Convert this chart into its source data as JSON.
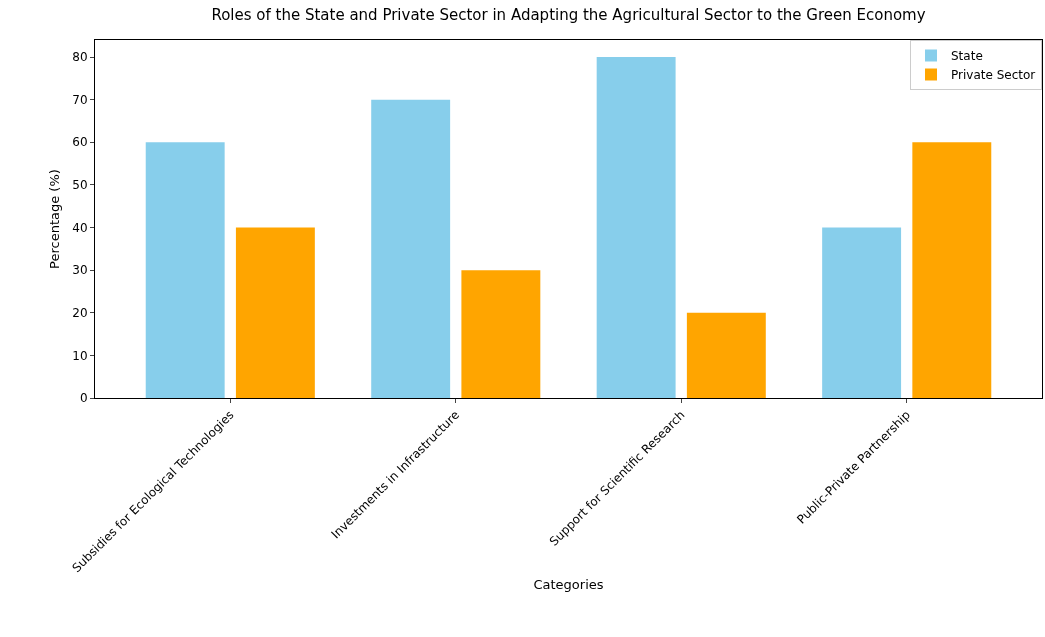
{
  "chart_data": {
    "type": "bar",
    "title": "Roles of the State and Private Sector in Adapting the Agricultural Sector to the Green Economy",
    "xlabel": "Categories",
    "ylabel": "Percentage (%)",
    "categories": [
      "Subsidies for Ecological Technologies",
      "Investments in Infrastructure",
      "Support for Scientific Research",
      "Public-Private Partnership"
    ],
    "series": [
      {
        "name": "State",
        "color": "#87ceeb",
        "values": [
          60,
          70,
          80,
          40
        ]
      },
      {
        "name": "Private Sector",
        "color": "#ffa500",
        "values": [
          40,
          30,
          20,
          60
        ]
      }
    ],
    "ylim": [
      0,
      84
    ],
    "yticks": [
      0,
      10,
      20,
      30,
      40,
      50,
      60,
      70,
      80
    ],
    "grid": false,
    "legend": "top right"
  }
}
